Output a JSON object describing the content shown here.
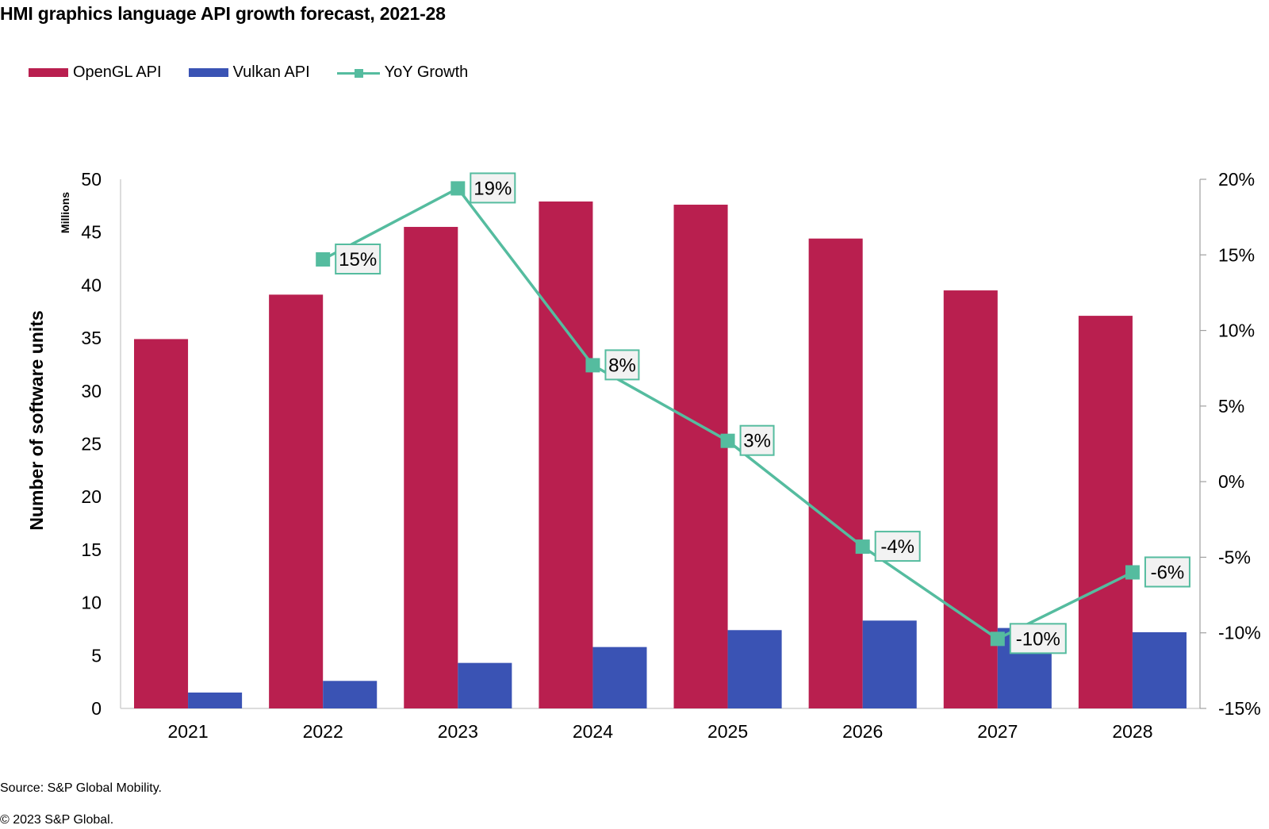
{
  "chart_data": {
    "type": "bar",
    "title": "HMI graphics language API growth forecast, 2021-28",
    "categories": [
      "2021",
      "2022",
      "2023",
      "2024",
      "2025",
      "2026",
      "2027",
      "2028"
    ],
    "series": [
      {
        "name": "OpenGL API",
        "type": "bar",
        "axis": "left",
        "color": "#b91f4f",
        "values": [
          34.9,
          39.1,
          45.5,
          47.9,
          47.6,
          44.4,
          39.5,
          37.1
        ]
      },
      {
        "name": "Vulkan API",
        "type": "bar",
        "axis": "left",
        "color": "#3a53b4",
        "values": [
          1.5,
          2.6,
          4.3,
          5.8,
          7.4,
          8.3,
          7.6,
          7.2
        ]
      },
      {
        "name": "YoY Growth",
        "type": "line",
        "axis": "right",
        "color": "#55bc9f",
        "values": [
          null,
          14.7,
          19.4,
          7.7,
          2.7,
          -4.3,
          -10.4,
          -6.0
        ],
        "data_labels": [
          null,
          "15%",
          "19%",
          "8%",
          "3%",
          "-4%",
          "-10%",
          "-6%"
        ]
      }
    ],
    "ylabel": "Number of software units",
    "ylabel_unit": "Millions",
    "ylim": [
      0,
      50
    ],
    "yticks": [
      "0",
      "5",
      "10",
      "15",
      "20",
      "25",
      "30",
      "35",
      "40",
      "45",
      "50"
    ],
    "ytick_values": [
      0,
      5,
      10,
      15,
      20,
      25,
      30,
      35,
      40,
      45,
      50
    ],
    "y2lim": [
      -15,
      20
    ],
    "y2ticks": [
      "-15%",
      "-10%",
      "-5%",
      "0%",
      "5%",
      "10%",
      "15%",
      "20%"
    ],
    "y2tick_values": [
      -15,
      -10,
      -5,
      0,
      5,
      10,
      15,
      20
    ],
    "xlabel": "",
    "grid": false,
    "legend_position": "top-left"
  },
  "legend": [
    {
      "label": "OpenGL API"
    },
    {
      "label": "Vulkan API"
    },
    {
      "label": "YoY Growth"
    }
  ],
  "footer": {
    "source": "Source: S&P Global Mobility.",
    "copyright": "© 2023 S&P Global."
  }
}
